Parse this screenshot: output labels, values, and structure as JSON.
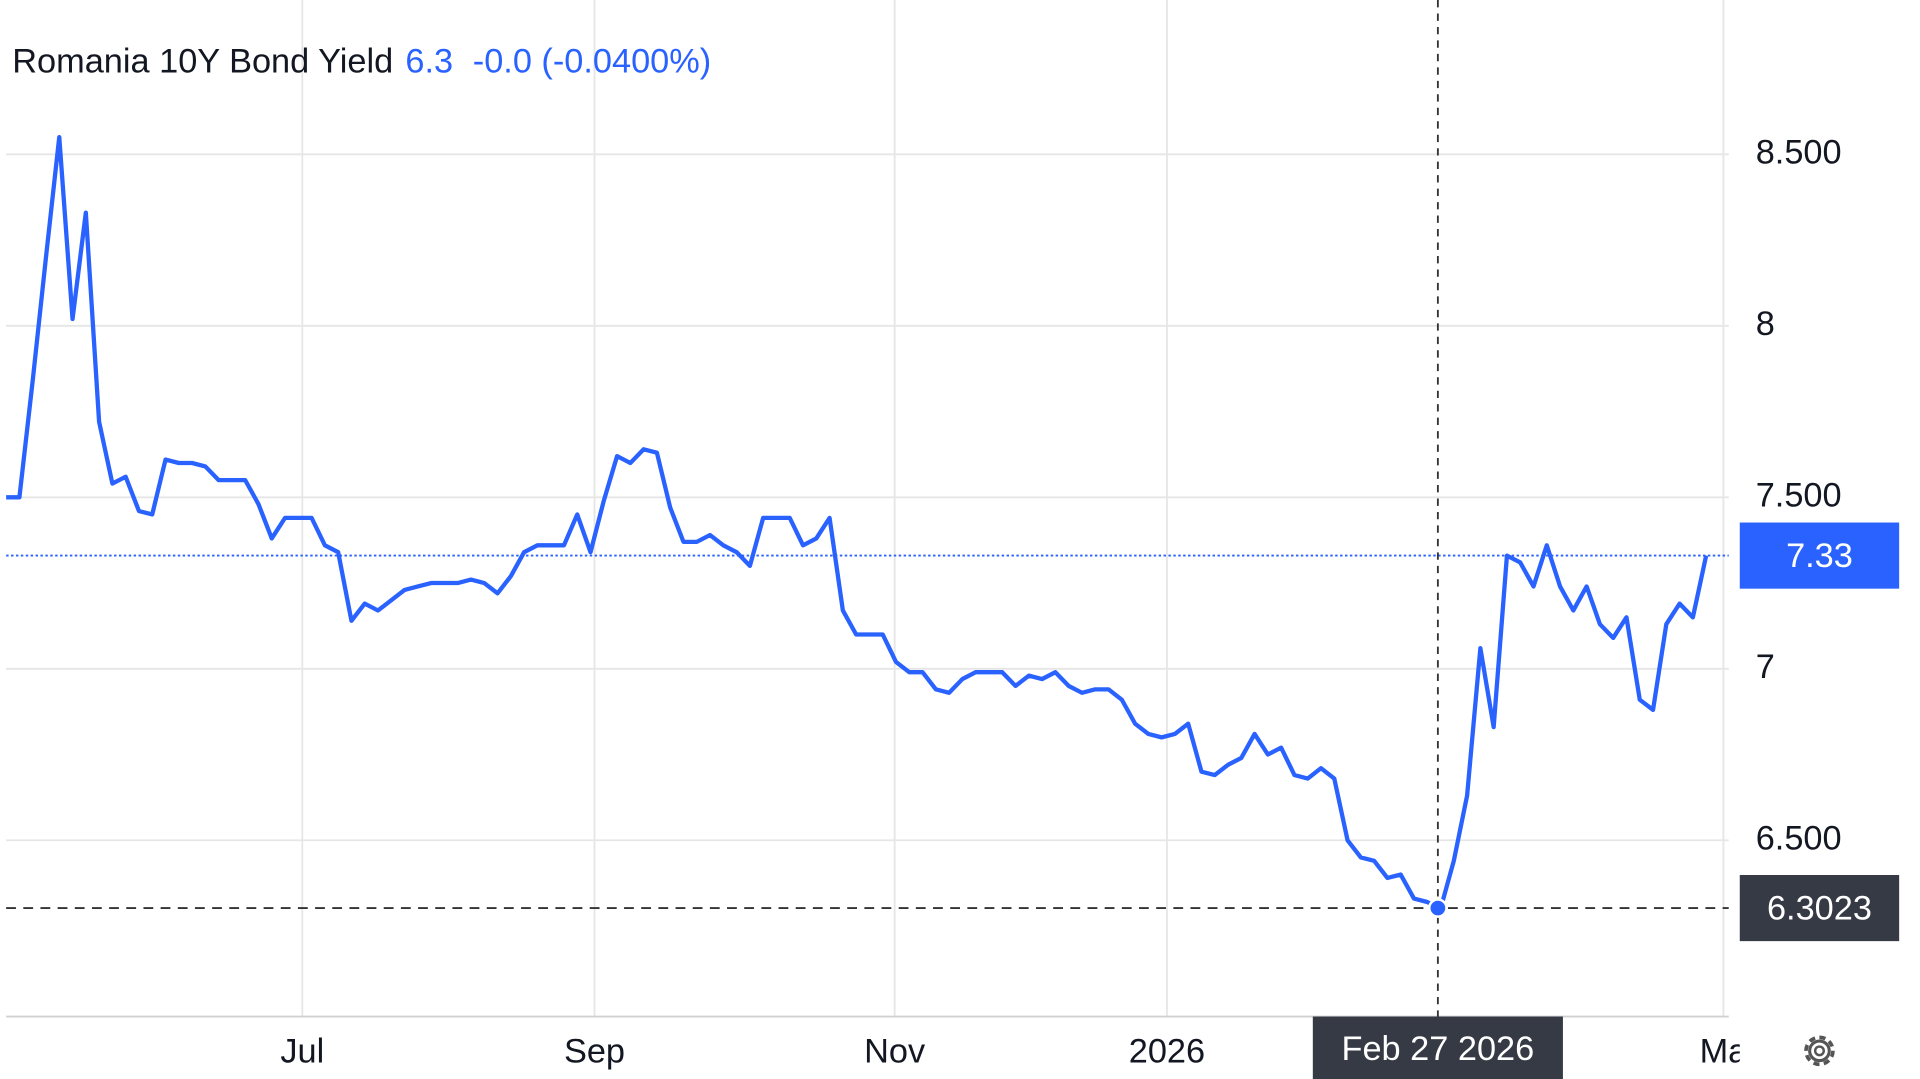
{
  "chart_data": {
    "type": "line",
    "header": {
      "price": "6.3",
      "change": "-0.0 (-0.0400%)"
    },
    "series": [
      {
        "name": "Romania 10Y Bond Yield",
        "color": "#2962ff",
        "values": [
          7.5,
          7.5,
          7.84,
          8.2,
          8.55,
          8.02,
          8.33,
          7.72,
          7.54,
          7.56,
          7.46,
          7.45,
          7.61,
          7.6,
          7.6,
          7.59,
          7.55,
          7.55,
          7.55,
          7.48,
          7.38,
          7.44,
          7.44,
          7.44,
          7.36,
          7.34,
          7.14,
          7.19,
          7.17,
          7.2,
          7.23,
          7.24,
          7.25,
          7.25,
          7.25,
          7.26,
          7.25,
          7.22,
          7.27,
          7.34,
          7.36,
          7.36,
          7.36,
          7.45,
          7.34,
          7.49,
          7.62,
          7.6,
          7.64,
          7.63,
          7.47,
          7.37,
          7.37,
          7.39,
          7.36,
          7.34,
          7.3,
          7.44,
          7.44,
          7.44,
          7.36,
          7.38,
          7.44,
          7.17,
          7.1,
          7.1,
          7.1,
          7.02,
          6.99,
          6.99,
          6.94,
          6.93,
          6.97,
          6.99,
          6.99,
          6.99,
          6.95,
          6.98,
          6.97,
          6.99,
          6.95,
          6.93,
          6.94,
          6.94,
          6.91,
          6.84,
          6.81,
          6.8,
          6.81,
          6.84,
          6.7,
          6.69,
          6.72,
          6.74,
          6.81,
          6.75,
          6.77,
          6.69,
          6.68,
          6.71,
          6.68,
          6.5,
          6.45,
          6.44,
          6.39,
          6.4,
          6.33,
          6.32,
          6.3,
          6.44,
          6.63,
          7.06,
          6.83,
          7.33,
          7.31,
          7.24,
          7.36,
          7.24,
          7.17,
          7.24,
          7.13,
          7.09,
          7.15,
          6.91,
          6.88,
          7.13,
          7.19,
          7.15,
          7.33
        ]
      }
    ],
    "xlim": [
      0,
      129.7
    ],
    "xticks": [
      {
        "value": 22.3,
        "label": "Jul"
      },
      {
        "value": 44.3,
        "label": "Sep"
      },
      {
        "value": 66.9,
        "label": "Nov"
      },
      {
        "value": 87.4,
        "label": "2026"
      },
      {
        "value": 129.3,
        "label": "Ma"
      }
    ],
    "ylim": [
      5.986,
      8.95
    ],
    "yticks": [
      {
        "value": 6.5,
        "label": "6.500"
      },
      7,
      {
        "value": 7.5,
        "label": "7.500"
      },
      8,
      {
        "value": 8.5,
        "label": "8.500"
      }
    ],
    "grid": true,
    "crosshair": {
      "x": {
        "value": 107.8,
        "label": "Feb 27 2026"
      },
      "y": 6.3023
    }
  }
}
